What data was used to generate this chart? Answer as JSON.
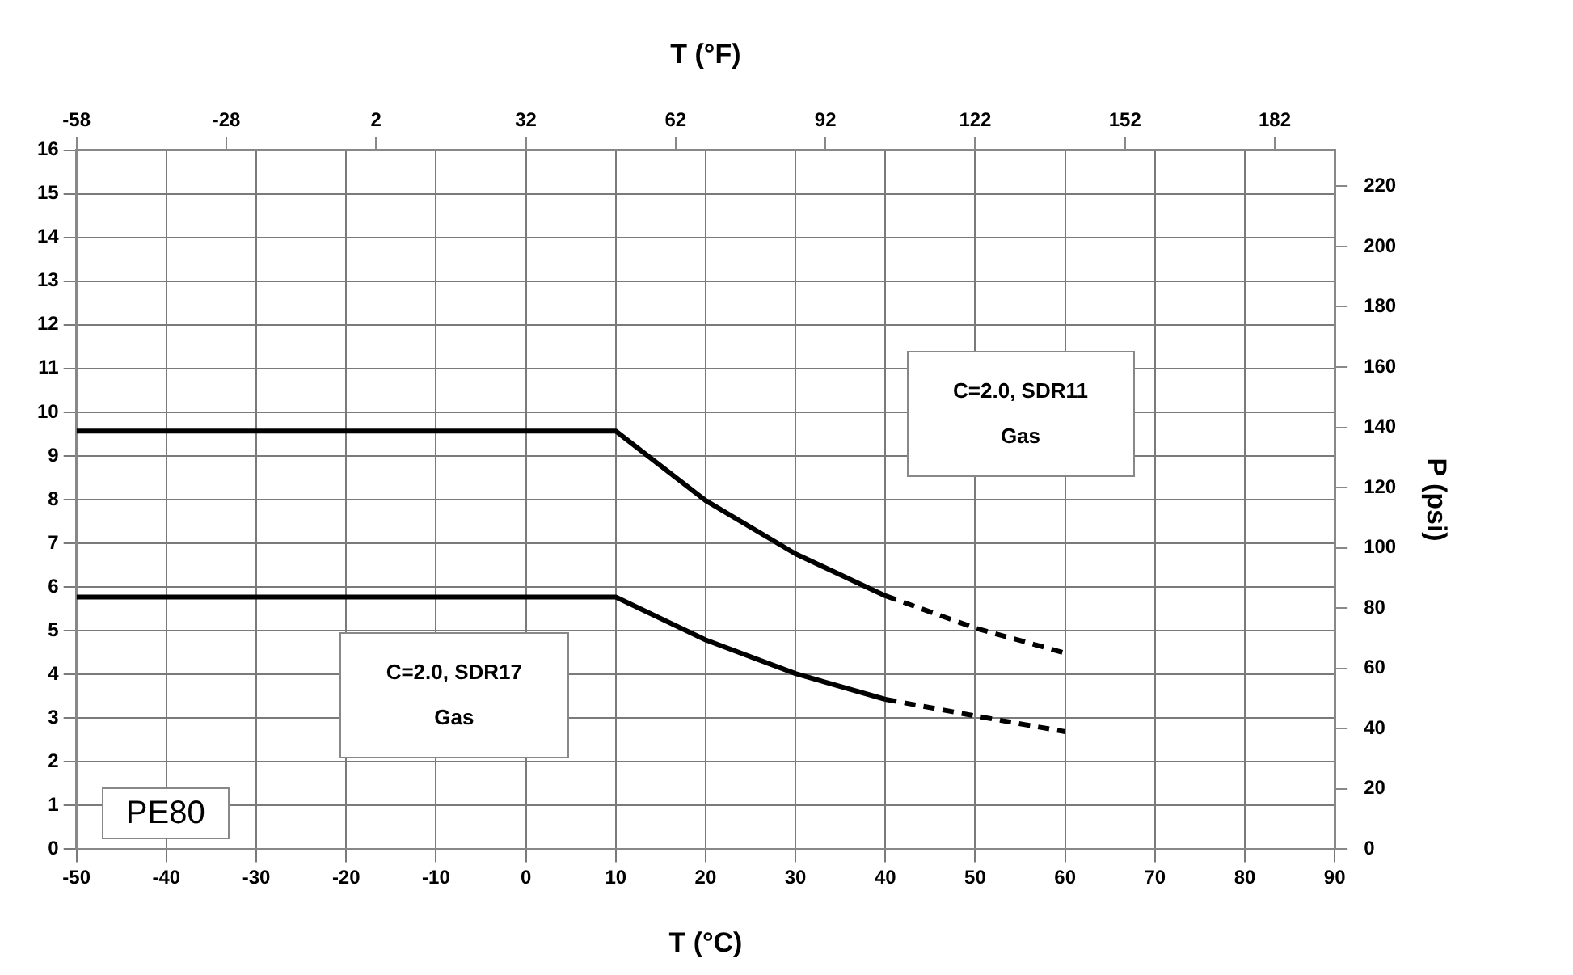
{
  "chart_data": {
    "type": "line",
    "xlabel": "T (°C)",
    "x2label": "T (°F)",
    "y2label": "P (psi)",
    "xlim": [
      -50,
      90
    ],
    "xticks": [
      -50,
      -40,
      -30,
      -20,
      -10,
      0,
      10,
      20,
      30,
      40,
      50,
      60,
      70,
      80,
      90
    ],
    "x2lim": [
      -58,
      194
    ],
    "x2ticks": [
      -58,
      -28,
      2,
      32,
      62,
      92,
      122,
      152,
      182
    ],
    "ylim": [
      0,
      16
    ],
    "yticks": [
      0,
      1,
      2,
      3,
      4,
      5,
      6,
      7,
      8,
      9,
      10,
      11,
      12,
      13,
      14,
      15,
      16
    ],
    "y2lim": [
      0,
      232
    ],
    "y2ticks": [
      0,
      20,
      40,
      60,
      80,
      100,
      120,
      140,
      160,
      180,
      200,
      220
    ],
    "grid": true,
    "series": [
      {
        "color": "#000000",
        "line_style": "solid",
        "x": [
          -50,
          10,
          20,
          30,
          40
        ],
        "values": [
          9.57,
          9.57,
          7.98,
          6.76,
          5.8
        ]
      },
      {
        "color": "#000000",
        "line_style": "dashed",
        "x": [
          40,
          50,
          60
        ],
        "values": [
          5.8,
          5.06,
          4.49
        ]
      },
      {
        "color": "#000000",
        "line_style": "solid",
        "x": [
          -50,
          10,
          20,
          30,
          40
        ],
        "values": [
          5.77,
          5.77,
          4.79,
          4.02,
          3.43
        ]
      },
      {
        "color": "#000000",
        "line_style": "dashed",
        "x": [
          40,
          50,
          60
        ],
        "values": [
          3.43,
          3.05,
          2.69
        ]
      }
    ],
    "annotations": [
      "C=2.0, SDR11\nGas",
      "C=2.0, SDR17\nGas",
      "PE80"
    ]
  }
}
